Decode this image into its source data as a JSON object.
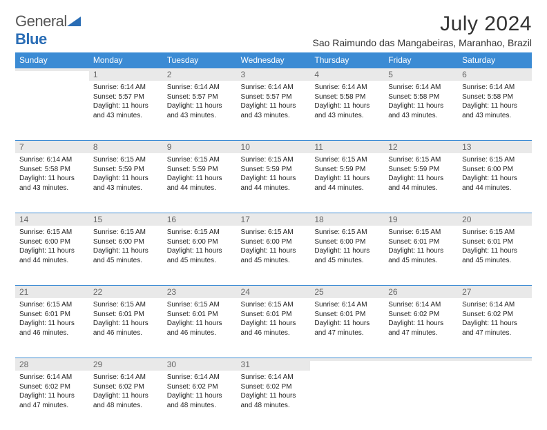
{
  "logo": {
    "text1": "General",
    "text2": "Blue"
  },
  "title": "July 2024",
  "location": "Sao Raimundo das Mangabeiras, Maranhao, Brazil",
  "colors": {
    "header_bg": "#3b8bd4",
    "header_text": "#ffffff",
    "daynum_bg": "#e9e9e9",
    "rule": "#3b8bd4",
    "logo_gray": "#555555",
    "logo_blue": "#2a6db5"
  },
  "weekdays": [
    "Sunday",
    "Monday",
    "Tuesday",
    "Wednesday",
    "Thursday",
    "Friday",
    "Saturday"
  ],
  "weeks": [
    {
      "nums": [
        "",
        "1",
        "2",
        "3",
        "4",
        "5",
        "6"
      ],
      "cells": [
        null,
        {
          "sr": "6:14 AM",
          "ss": "5:57 PM",
          "dl": "11 hours and 43 minutes."
        },
        {
          "sr": "6:14 AM",
          "ss": "5:57 PM",
          "dl": "11 hours and 43 minutes."
        },
        {
          "sr": "6:14 AM",
          "ss": "5:57 PM",
          "dl": "11 hours and 43 minutes."
        },
        {
          "sr": "6:14 AM",
          "ss": "5:58 PM",
          "dl": "11 hours and 43 minutes."
        },
        {
          "sr": "6:14 AM",
          "ss": "5:58 PM",
          "dl": "11 hours and 43 minutes."
        },
        {
          "sr": "6:14 AM",
          "ss": "5:58 PM",
          "dl": "11 hours and 43 minutes."
        }
      ]
    },
    {
      "nums": [
        "7",
        "8",
        "9",
        "10",
        "11",
        "12",
        "13"
      ],
      "cells": [
        {
          "sr": "6:14 AM",
          "ss": "5:58 PM",
          "dl": "11 hours and 43 minutes."
        },
        {
          "sr": "6:15 AM",
          "ss": "5:59 PM",
          "dl": "11 hours and 43 minutes."
        },
        {
          "sr": "6:15 AM",
          "ss": "5:59 PM",
          "dl": "11 hours and 44 minutes."
        },
        {
          "sr": "6:15 AM",
          "ss": "5:59 PM",
          "dl": "11 hours and 44 minutes."
        },
        {
          "sr": "6:15 AM",
          "ss": "5:59 PM",
          "dl": "11 hours and 44 minutes."
        },
        {
          "sr": "6:15 AM",
          "ss": "5:59 PM",
          "dl": "11 hours and 44 minutes."
        },
        {
          "sr": "6:15 AM",
          "ss": "6:00 PM",
          "dl": "11 hours and 44 minutes."
        }
      ]
    },
    {
      "nums": [
        "14",
        "15",
        "16",
        "17",
        "18",
        "19",
        "20"
      ],
      "cells": [
        {
          "sr": "6:15 AM",
          "ss": "6:00 PM",
          "dl": "11 hours and 44 minutes."
        },
        {
          "sr": "6:15 AM",
          "ss": "6:00 PM",
          "dl": "11 hours and 45 minutes."
        },
        {
          "sr": "6:15 AM",
          "ss": "6:00 PM",
          "dl": "11 hours and 45 minutes."
        },
        {
          "sr": "6:15 AM",
          "ss": "6:00 PM",
          "dl": "11 hours and 45 minutes."
        },
        {
          "sr": "6:15 AM",
          "ss": "6:00 PM",
          "dl": "11 hours and 45 minutes."
        },
        {
          "sr": "6:15 AM",
          "ss": "6:01 PM",
          "dl": "11 hours and 45 minutes."
        },
        {
          "sr": "6:15 AM",
          "ss": "6:01 PM",
          "dl": "11 hours and 45 minutes."
        }
      ]
    },
    {
      "nums": [
        "21",
        "22",
        "23",
        "24",
        "25",
        "26",
        "27"
      ],
      "cells": [
        {
          "sr": "6:15 AM",
          "ss": "6:01 PM",
          "dl": "11 hours and 46 minutes."
        },
        {
          "sr": "6:15 AM",
          "ss": "6:01 PM",
          "dl": "11 hours and 46 minutes."
        },
        {
          "sr": "6:15 AM",
          "ss": "6:01 PM",
          "dl": "11 hours and 46 minutes."
        },
        {
          "sr": "6:15 AM",
          "ss": "6:01 PM",
          "dl": "11 hours and 46 minutes."
        },
        {
          "sr": "6:14 AM",
          "ss": "6:01 PM",
          "dl": "11 hours and 47 minutes."
        },
        {
          "sr": "6:14 AM",
          "ss": "6:02 PM",
          "dl": "11 hours and 47 minutes."
        },
        {
          "sr": "6:14 AM",
          "ss": "6:02 PM",
          "dl": "11 hours and 47 minutes."
        }
      ]
    },
    {
      "nums": [
        "28",
        "29",
        "30",
        "31",
        "",
        "",
        ""
      ],
      "cells": [
        {
          "sr": "6:14 AM",
          "ss": "6:02 PM",
          "dl": "11 hours and 47 minutes."
        },
        {
          "sr": "6:14 AM",
          "ss": "6:02 PM",
          "dl": "11 hours and 48 minutes."
        },
        {
          "sr": "6:14 AM",
          "ss": "6:02 PM",
          "dl": "11 hours and 48 minutes."
        },
        {
          "sr": "6:14 AM",
          "ss": "6:02 PM",
          "dl": "11 hours and 48 minutes."
        },
        null,
        null,
        null
      ]
    }
  ],
  "labels": {
    "sunrise": "Sunrise:",
    "sunset": "Sunset:",
    "daylight": "Daylight:"
  }
}
